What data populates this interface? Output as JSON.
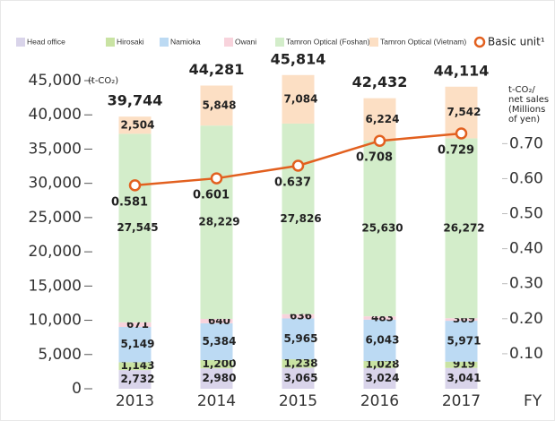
{
  "chart_data": {
    "type": "bar",
    "stacked": true,
    "y_label": "(t-CO₂)",
    "y2_label": [
      "t-CO₂/",
      "net sales",
      "(Millions",
      "of yen)"
    ],
    "x_label": "FY",
    "categories": [
      "2013",
      "2014",
      "2015",
      "2016",
      "2017"
    ],
    "series": [
      {
        "name": "Head office",
        "color": "#d9d4ea",
        "values": [
          2732,
          2980,
          3065,
          3024,
          3041
        ],
        "value_labels": [
          "2,732",
          "2,980",
          "3,065",
          "3,024",
          "3,041"
        ]
      },
      {
        "name": "Hirosaki",
        "color": "#c9e3a3",
        "values": [
          1143,
          1200,
          1238,
          1028,
          919
        ],
        "value_labels": [
          "1,143",
          "1,200",
          "1,238",
          "1,028",
          "919"
        ]
      },
      {
        "name": "Namioka",
        "color": "#bcdaf3",
        "values": [
          5149,
          5384,
          5965,
          6043,
          5971
        ],
        "value_labels": [
          "5,149",
          "5,384",
          "5,965",
          "6,043",
          "5,971"
        ]
      },
      {
        "name": "Owani",
        "color": "#f8d3dc",
        "values": [
          671,
          640,
          636,
          483,
          369
        ]
      },
      {
        "name": "Tamron Optical (Foshan)",
        "color": "#d3edca",
        "values": [
          27545,
          28229,
          27826,
          25630,
          26272
        ],
        "value_labels": [
          "27,545",
          "28,229",
          "27,826",
          "25,630",
          "26,272"
        ]
      },
      {
        "name": "Tamron Optical (Vietnam)",
        "color": "#fcdfc4",
        "values": [
          2504,
          5848,
          7084,
          6224,
          7542
        ],
        "value_labels": [
          "2,504",
          "5,848",
          "7,084",
          "6,224",
          "7,542"
        ]
      },
      {
        "name": "Basic unit¹",
        "type": "line",
        "axis": "y2",
        "color": "#e2601f",
        "label_color": "#e03232",
        "values": [
          0.581,
          0.601,
          0.637,
          0.708,
          0.729
        ]
      }
    ],
    "totals": [
      39744,
      44281,
      45814,
      42432,
      44114
    ],
    "total_labels": [
      "39,744",
      "44,281",
      "45,814",
      "42,432",
      "44,114"
    ],
    "total_color": "#1f5f9c",
    "ylim": [
      0,
      45000
    ],
    "yticks": [
      0,
      {
        "value": 5000,
        "label": "5,000"
      },
      {
        "value": 10000,
        "label": "10,000"
      },
      {
        "value": 15000,
        "label": "15,000"
      },
      {
        "value": 20000,
        "label": "20,000"
      },
      {
        "value": 25000,
        "label": "25,000"
      },
      {
        "value": 30000,
        "label": "30,000"
      },
      {
        "value": 35000,
        "label": "35,000"
      },
      {
        "value": 40000,
        "label": "40,000"
      },
      {
        "value": 45000,
        "label": "45,000"
      }
    ],
    "y2lim": [
      0,
      0.88
    ],
    "y2ticks": [
      {
        "value": 0.1,
        "label": "0.10"
      },
      {
        "value": 0.2,
        "label": "0.20"
      },
      {
        "value": 0.3,
        "label": "0.30"
      },
      {
        "value": 0.4,
        "label": "0.40"
      },
      {
        "value": 0.5,
        "label": "0.50"
      },
      {
        "value": 0.6,
        "label": "0.60"
      },
      {
        "value": 0.7,
        "label": "0.70"
      }
    ]
  }
}
